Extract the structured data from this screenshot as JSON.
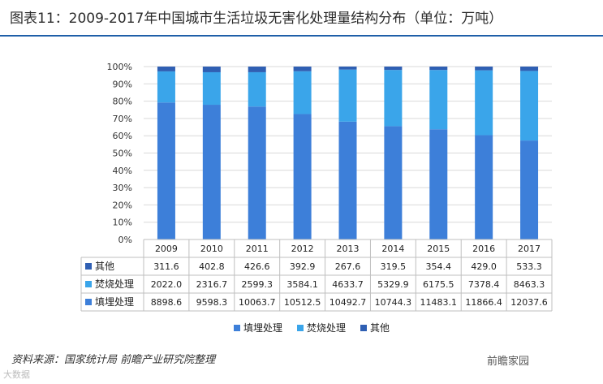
{
  "title": "图表11：2009-2017年中国城市生活垃圾无害化处理量结构分布（单位：万吨）",
  "source": "资料来源：国家统计局 前瞻产业研究院整理",
  "watermark_account": "前瞻家园",
  "watermark_corner": "大数据",
  "colors": {
    "landfill": "#3d7fd9",
    "incineration": "#3aa5ea",
    "other": "#2f5fb3",
    "title_rule": "#1f5fa8",
    "grid": "#d9d9d9",
    "table_border": "#bfbfbf"
  },
  "chart_data": {
    "type": "bar",
    "stacked": true,
    "normalized": true,
    "title": "图表11：2009-2017年中国城市生活垃圾无害化处理量结构分布（单位：万吨）",
    "categories": [
      "2009",
      "2010",
      "2011",
      "2012",
      "2013",
      "2014",
      "2015",
      "2016",
      "2017"
    ],
    "y_ticks": [
      "0%",
      "10%",
      "20%",
      "30%",
      "40%",
      "50%",
      "60%",
      "70%",
      "80%",
      "90%",
      "100%"
    ],
    "ylim": [
      0,
      100
    ],
    "series": [
      {
        "name": "填埋处理",
        "key": "landfill",
        "values": [
          8898.6,
          9598.3,
          10063.7,
          10512.5,
          10492.7,
          10744.3,
          11483.1,
          11866.4,
          12037.6
        ],
        "labels": [
          "8898.6",
          "9598.3",
          "10063.7",
          "10512.5",
          "10492.7",
          "10744.3",
          "11483.1",
          "11866.4",
          "12037.6"
        ]
      },
      {
        "name": "焚烧处理",
        "key": "incineration",
        "values": [
          2022.0,
          2316.7,
          2599.3,
          3584.1,
          4633.7,
          5329.9,
          6175.5,
          7378.4,
          8463.3
        ],
        "labels": [
          "2022.0",
          "2316.7",
          "2599.3",
          "3584.1",
          "4633.7",
          "5329.9",
          "6175.5",
          "7378.4",
          "8463.3"
        ]
      },
      {
        "name": "其他",
        "key": "other",
        "values": [
          311.6,
          402.8,
          426.6,
          392.9,
          267.6,
          319.5,
          354.4,
          429.0,
          533.3
        ],
        "labels": [
          "311.6",
          "402.8",
          "426.6",
          "392.9",
          "267.6",
          "319.5",
          "354.4",
          "429.0",
          "533.3"
        ]
      }
    ],
    "table_row_order": [
      "其他",
      "焚烧处理",
      "填埋处理"
    ],
    "legend": {
      "position": "bottom",
      "order": [
        "填埋处理",
        "焚烧处理",
        "其他"
      ]
    },
    "grid": true
  }
}
